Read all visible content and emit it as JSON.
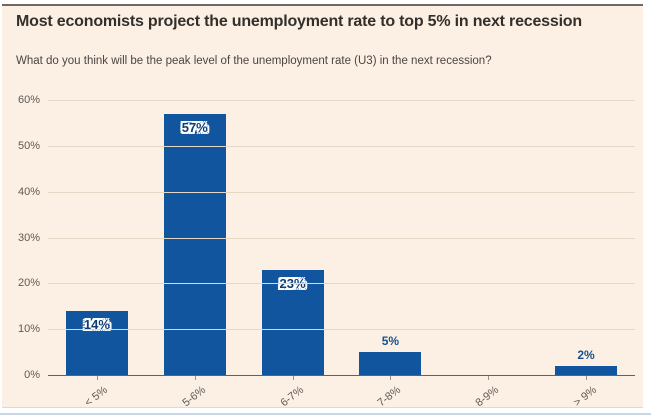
{
  "page": {
    "title": "Most economists project the unemployment rate to top 5% in next recession",
    "subtitle": "What do you think will be the peak level of the unemployment rate (U3) in the next recession?"
  },
  "chart_data": {
    "type": "bar",
    "title": "Most economists project the unemployment rate to top 5% in next recession",
    "subtitle": "What do you think will be the peak level of the unemployment rate (U3) in the next recession?",
    "categories": [
      "< 5%",
      "5-6%",
      "6-7%",
      "7-8%",
      "8-9%",
      "> 9%"
    ],
    "values": [
      14,
      57,
      23,
      5,
      0,
      2
    ],
    "value_labels": [
      "14%",
      "57%",
      "23%",
      "5%",
      "",
      "2%"
    ],
    "xlabel": "",
    "ylabel": "",
    "ylim": [
      0,
      60
    ],
    "ytick_step": 10,
    "ytick_labels": [
      "0%",
      "10%",
      "20%",
      "30%",
      "40%",
      "50%",
      "60%"
    ],
    "grid": "horizontal",
    "legend": "none",
    "colors": {
      "background": "#fcf0e4",
      "bar": "#11559e",
      "gridline": "#e5d8c6",
      "baseline": "#66605c",
      "axis_text": "#5f5954",
      "title_text": "#33302c",
      "subtitle_text": "#4a4542",
      "inside_label_text": "#0f3e74",
      "inside_label_halo": "#ffffff",
      "above_label_text": "#14528f",
      "bottom_rule": "#c9d8e6"
    }
  }
}
